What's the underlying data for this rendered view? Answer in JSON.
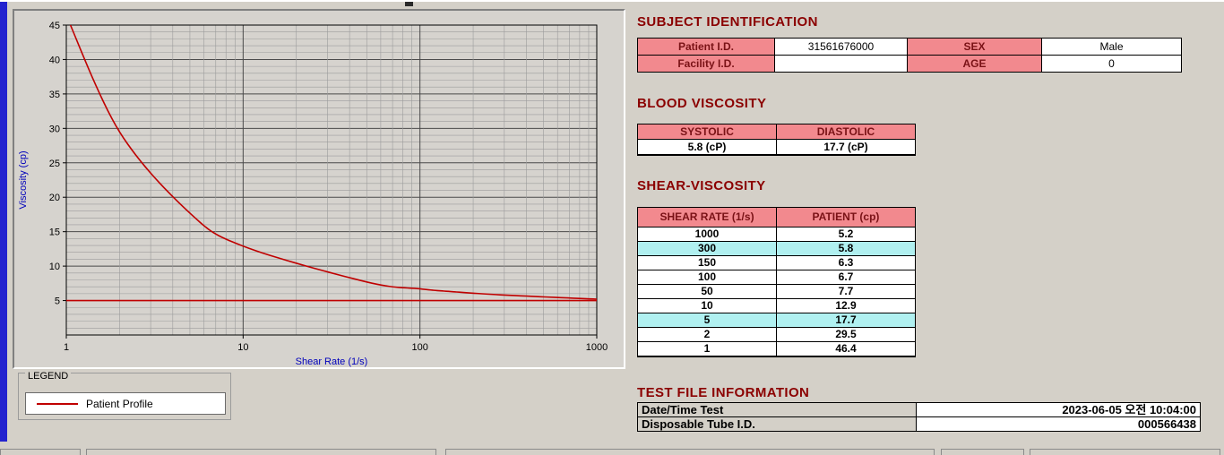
{
  "chart_data": {
    "type": "line",
    "title": "",
    "xlabel": "Shear Rate (1/s)",
    "ylabel": "Viscosity (cp)",
    "x_scale": "log",
    "xlim": [
      1,
      1000
    ],
    "ylim": [
      0,
      45
    ],
    "x_ticks": [
      1,
      10,
      100,
      1000
    ],
    "y_ticks": [
      5,
      10,
      15,
      20,
      25,
      30,
      35,
      40,
      45
    ],
    "grid": "on",
    "series": [
      {
        "name": "Patient Profile",
        "color": "#c00000",
        "x": [
          1,
          2,
          5,
          10,
          50,
          100,
          150,
          300,
          1000
        ],
        "y": [
          46.4,
          29.5,
          17.7,
          12.9,
          7.7,
          6.7,
          6.3,
          5.8,
          5.2
        ]
      },
      {
        "name": "baseline",
        "color": "#c00000",
        "x": [
          1,
          1000
        ],
        "y": [
          5,
          5
        ]
      }
    ]
  },
  "legend": {
    "title": "LEGEND",
    "items": [
      {
        "label": "Patient Profile",
        "color": "#c00000"
      }
    ]
  },
  "subject": {
    "title": "SUBJECT IDENTIFICATION",
    "rows": [
      {
        "label1": "Patient I.D.",
        "value1": "31561676000",
        "label2": "SEX",
        "value2": "Male"
      },
      {
        "label1": "Facility I.D.",
        "value1": "",
        "label2": "AGE",
        "value2": "0"
      }
    ]
  },
  "blood_viscosity": {
    "title": "BLOOD VISCOSITY",
    "headers": [
      "SYSTOLIC",
      "DIASTOLIC"
    ],
    "values": [
      "5.8 (cP)",
      "17.7 (cP)"
    ]
  },
  "shear_viscosity": {
    "title": "SHEAR-VISCOSITY",
    "headers": [
      "SHEAR RATE (1/s)",
      "PATIENT (cp)"
    ],
    "rows": [
      {
        "rate": "1000",
        "value": "5.2",
        "highlight": false
      },
      {
        "rate": "300",
        "value": "5.8",
        "highlight": true
      },
      {
        "rate": "150",
        "value": "6.3",
        "highlight": false
      },
      {
        "rate": "100",
        "value": "6.7",
        "highlight": false
      },
      {
        "rate": "50",
        "value": "7.7",
        "highlight": false
      },
      {
        "rate": "10",
        "value": "12.9",
        "highlight": false
      },
      {
        "rate": "5",
        "value": "17.7",
        "highlight": true
      },
      {
        "rate": "2",
        "value": "29.5",
        "highlight": false
      },
      {
        "rate": "1",
        "value": "46.4",
        "highlight": false
      }
    ]
  },
  "test_file": {
    "title": "TEST FILE INFORMATION",
    "rows": [
      {
        "label": "Date/Time Test",
        "value": "2023-06-05  오전 10:04:00"
      },
      {
        "label": "Disposable Tube I.D.",
        "value": "000566438"
      }
    ]
  },
  "colors": {
    "accent_pink": "#f2898e",
    "highlight_cyan": "#b0f0f0",
    "title_red": "#8b0000",
    "curve_red": "#c00000"
  }
}
